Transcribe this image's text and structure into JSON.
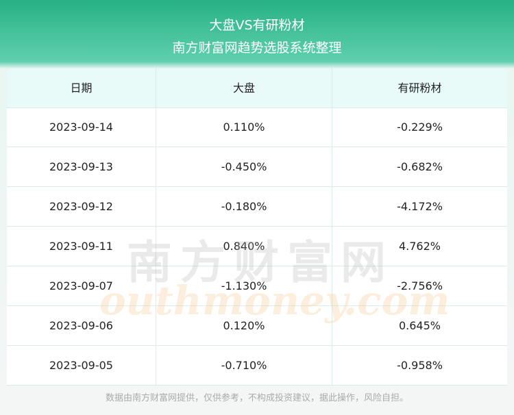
{
  "header": {
    "title": "大盘VS有研粉材",
    "subtitle": "南方财富网趋势选股系统整理"
  },
  "table": {
    "columns": [
      "日期",
      "大盘",
      "有研粉材"
    ],
    "rows": [
      [
        "2023-09-14",
        "0.110%",
        "-0.229%"
      ],
      [
        "2023-09-13",
        "-0.450%",
        "-0.682%"
      ],
      [
        "2023-09-12",
        "-0.180%",
        "-4.172%"
      ],
      [
        "2023-09-11",
        "0.840%",
        "4.762%"
      ],
      [
        "2023-09-07",
        "-1.130%",
        "-2.756%"
      ],
      [
        "2023-09-06",
        "0.120%",
        "0.645%"
      ],
      [
        "2023-09-05",
        "-0.710%",
        "-0.958%"
      ]
    ]
  },
  "watermark": {
    "cn": "南方财富网",
    "en": "outhmoney.com"
  },
  "footer": {
    "note": "数据由南方财富网提供，仅供参考，不构成投资建议，据此操作，风险自担。"
  }
}
